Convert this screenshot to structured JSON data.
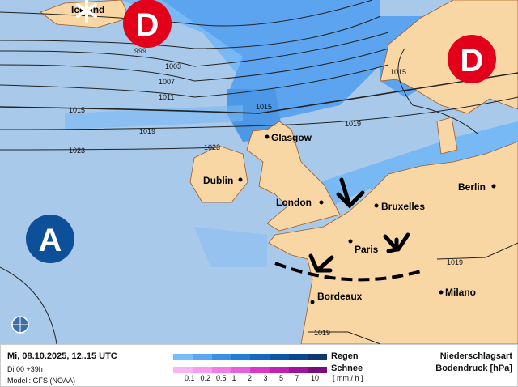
{
  "map": {
    "places": [
      "Iceland",
      "Glasgow",
      "Dublin",
      "London",
      "Bruxelles",
      "Berlin",
      "Paris",
      "Bordeaux",
      "Milano"
    ],
    "isobars": [
      "999",
      "1003",
      "1007",
      "1011",
      "1015",
      "1015",
      "1015",
      "1019",
      "1019",
      "1019",
      "1023",
      "1023",
      "1019"
    ],
    "lows": [
      "D",
      "D"
    ],
    "high": "A",
    "colors": {
      "sea": "#a9c9ea",
      "land": "#f9d7a4",
      "low": "#e2001a",
      "high": "#0e4f9a",
      "rain_light": "#6fb6f7",
      "rain_mid": "#3c8fe6"
    }
  },
  "legend": {
    "date": "Mi, 08.10.2025, 12..15 UTC",
    "run": "Di 00 +39h",
    "model": "Modell: GFS (NOAA)",
    "rain_label": "Regen",
    "snow_label": "Schnee",
    "unit": "[ mm / h ]",
    "ticks": [
      "0.1",
      "0.2",
      "0.5",
      "1",
      "2",
      "3",
      "5",
      "7",
      "10"
    ],
    "rain_colors": [
      "#78bdfb",
      "#5aa7f3",
      "#3b8fe6",
      "#237cd8",
      "#1668c3",
      "#0f55a8",
      "#0b4690",
      "#10386f"
    ],
    "snow_colors": [
      "#fbb4f3",
      "#f79cee",
      "#f27be6",
      "#e85fdc",
      "#d936cc",
      "#c020b6",
      "#a0129b",
      "#7a0c7a"
    ],
    "type_label": "Niederschlagsart",
    "pressure_label": "Bodendruck [hPa]"
  }
}
